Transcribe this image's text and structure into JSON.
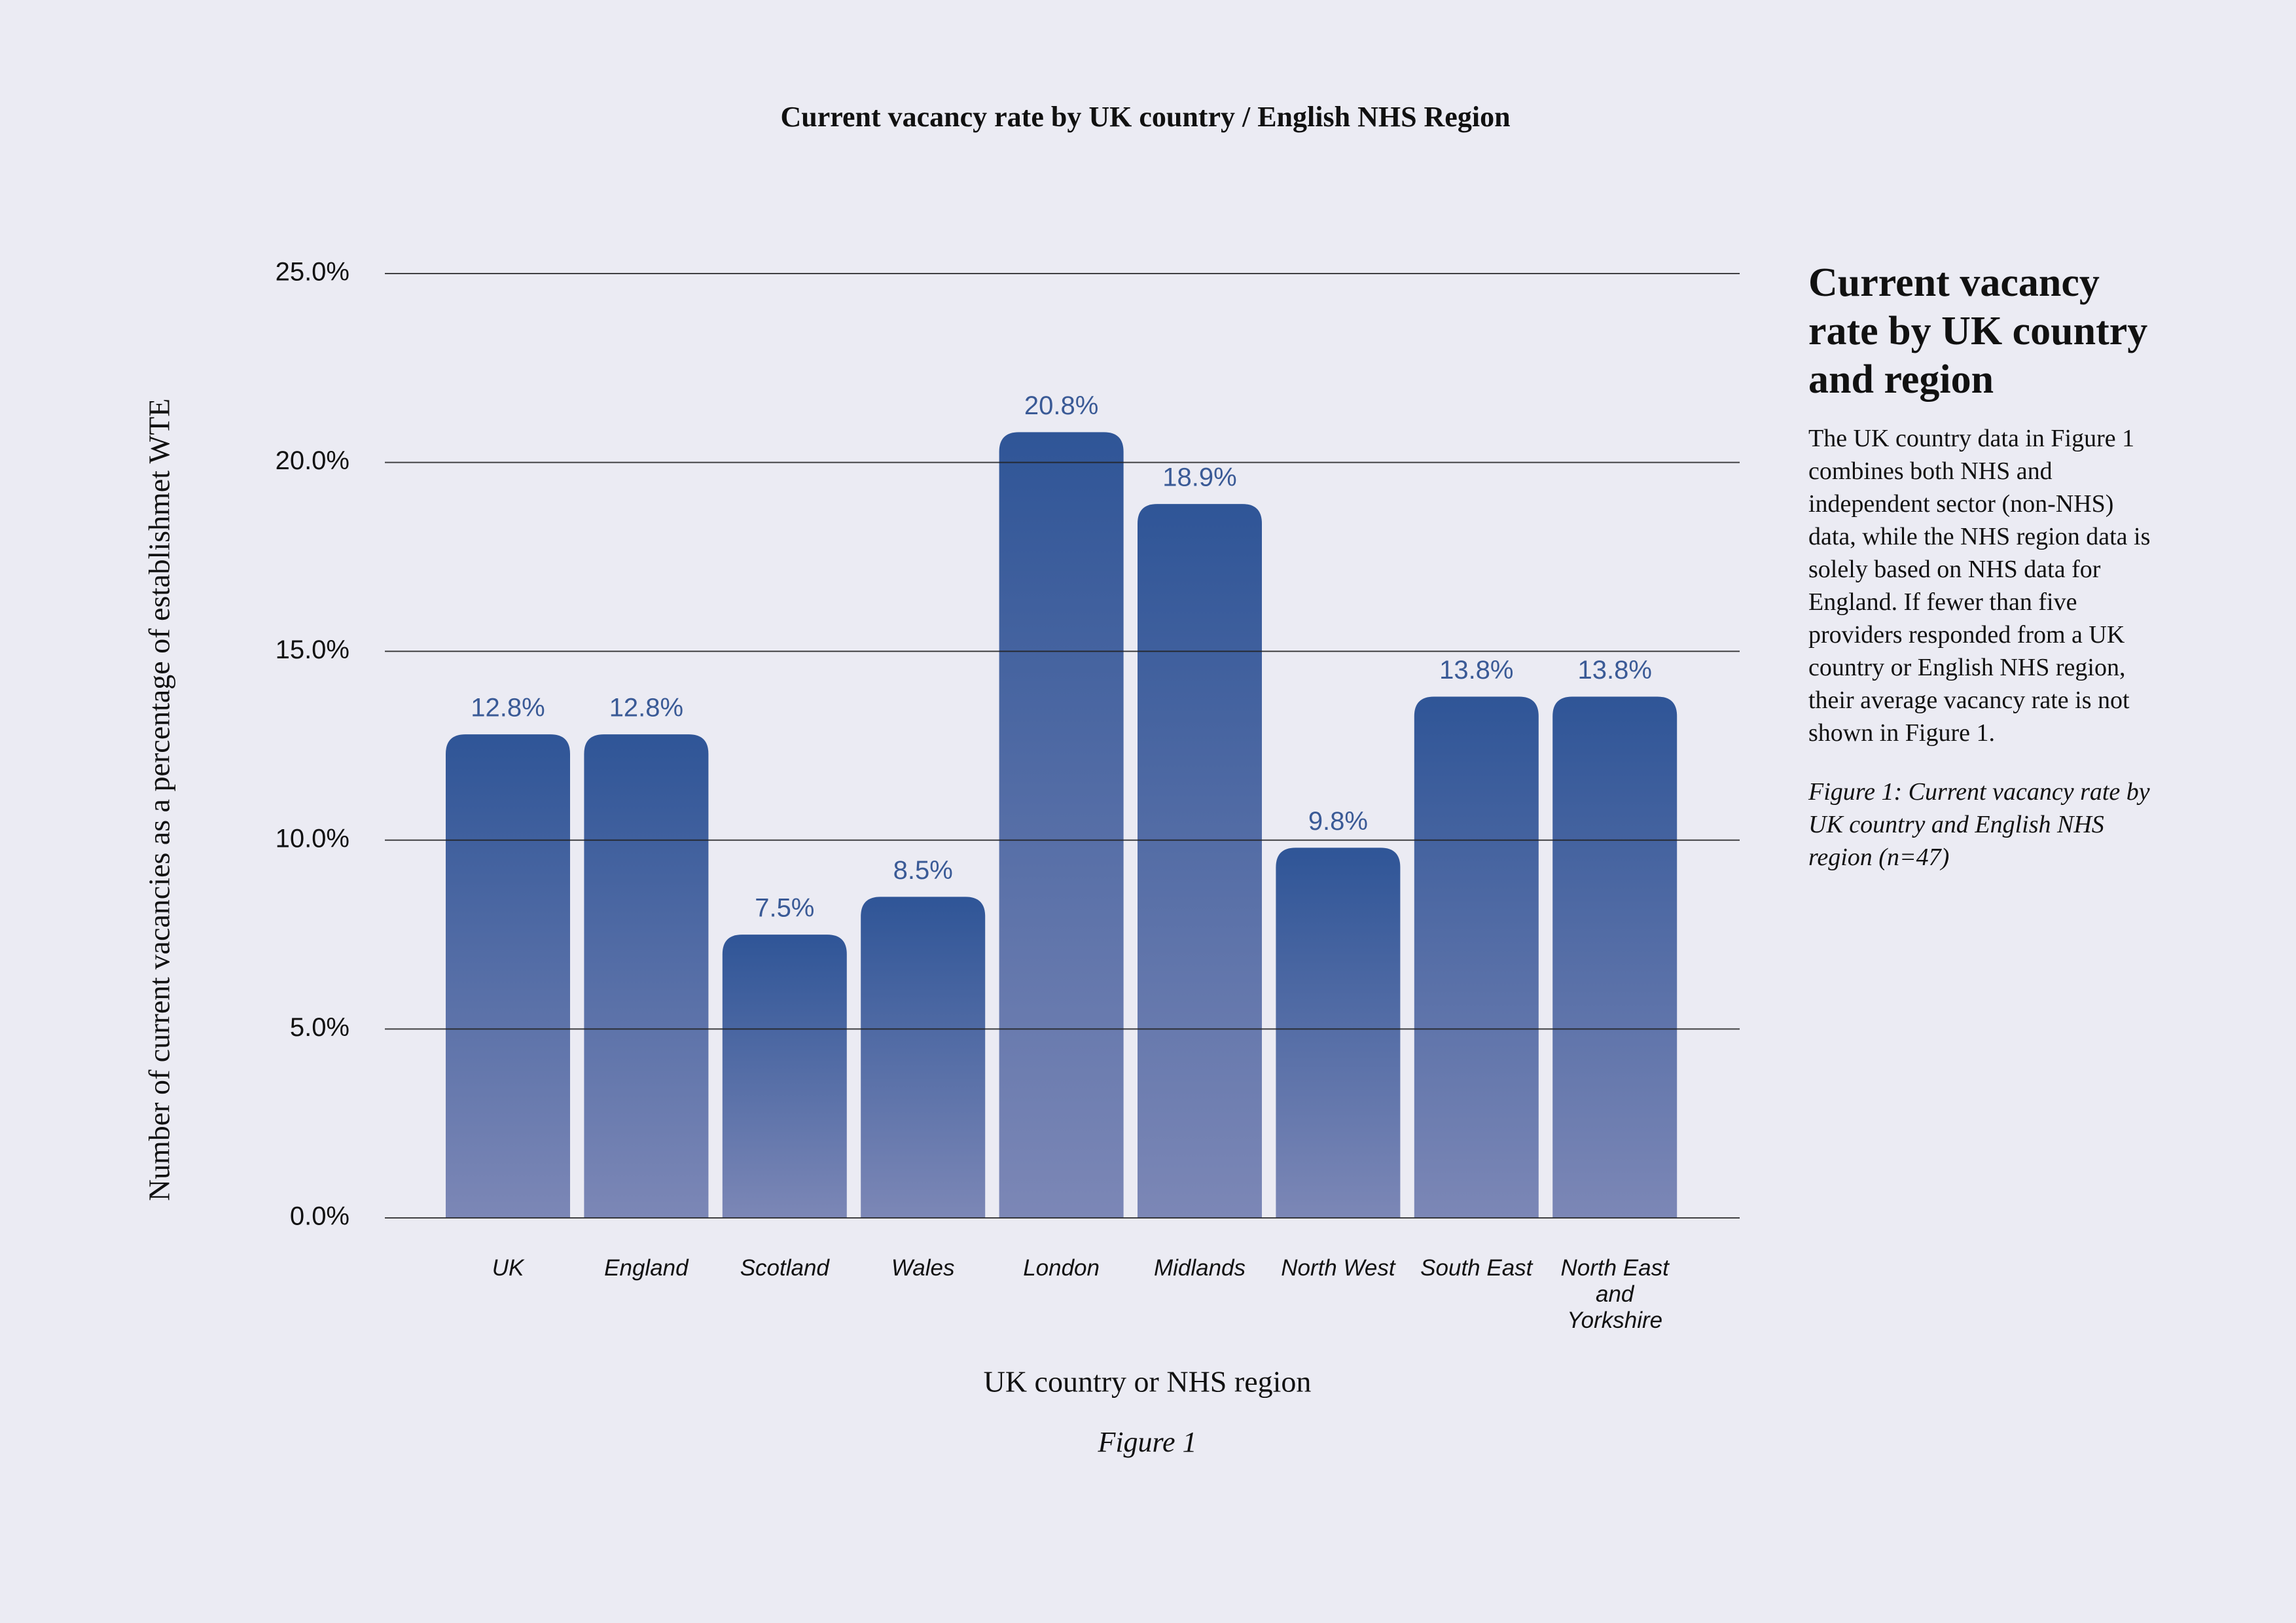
{
  "chart_data": {
    "type": "bar",
    "title": "Current vacancy rate by UK country / English NHS Region",
    "ylabel": "Number of current vacancies as a percentage of establishmet WTE",
    "xlabel": "UK country or NHS region",
    "caption": "Figure 1",
    "categories": [
      "UK",
      "England",
      "Scotland",
      "Wales",
      "London",
      "Midlands",
      "North West",
      "South East",
      "North East and Yorkshire"
    ],
    "values": [
      12.8,
      12.8,
      7.5,
      8.5,
      20.8,
      18.9,
      9.8,
      13.8,
      13.8
    ],
    "value_labels": [
      "12.8%",
      "12.8%",
      "7.5%",
      "8.5%",
      "20.8%",
      "18.9%",
      "9.8%",
      "13.8%",
      "13.8%"
    ],
    "color": [
      "#2f5597",
      "#7c87b6"
    ],
    "ylim": [
      0,
      25
    ],
    "yticks": [
      {
        "value": 0,
        "label": "0.0%"
      },
      {
        "value": 5,
        "label": "5.0%"
      },
      {
        "value": 10,
        "label": "10.0%"
      },
      {
        "value": 15,
        "label": "15.0%"
      },
      {
        "value": 20,
        "label": "20.0%"
      },
      {
        "value": 25,
        "label": "25.0%"
      }
    ],
    "grid": true,
    "side_heading": "Current vacancy rate by UK country and region",
    "side_text": "The UK country data in Figure 1 combines both NHS and independent sector (non-NHS) data, while the NHS region data is solely based on NHS data for England. If fewer than five providers responded from a UK country or English NHS region, their average vacancy rate is not shown in Figure 1.",
    "side_note": "Figure 1: Current vacancy rate by UK country and English NHS region (n=47)"
  }
}
